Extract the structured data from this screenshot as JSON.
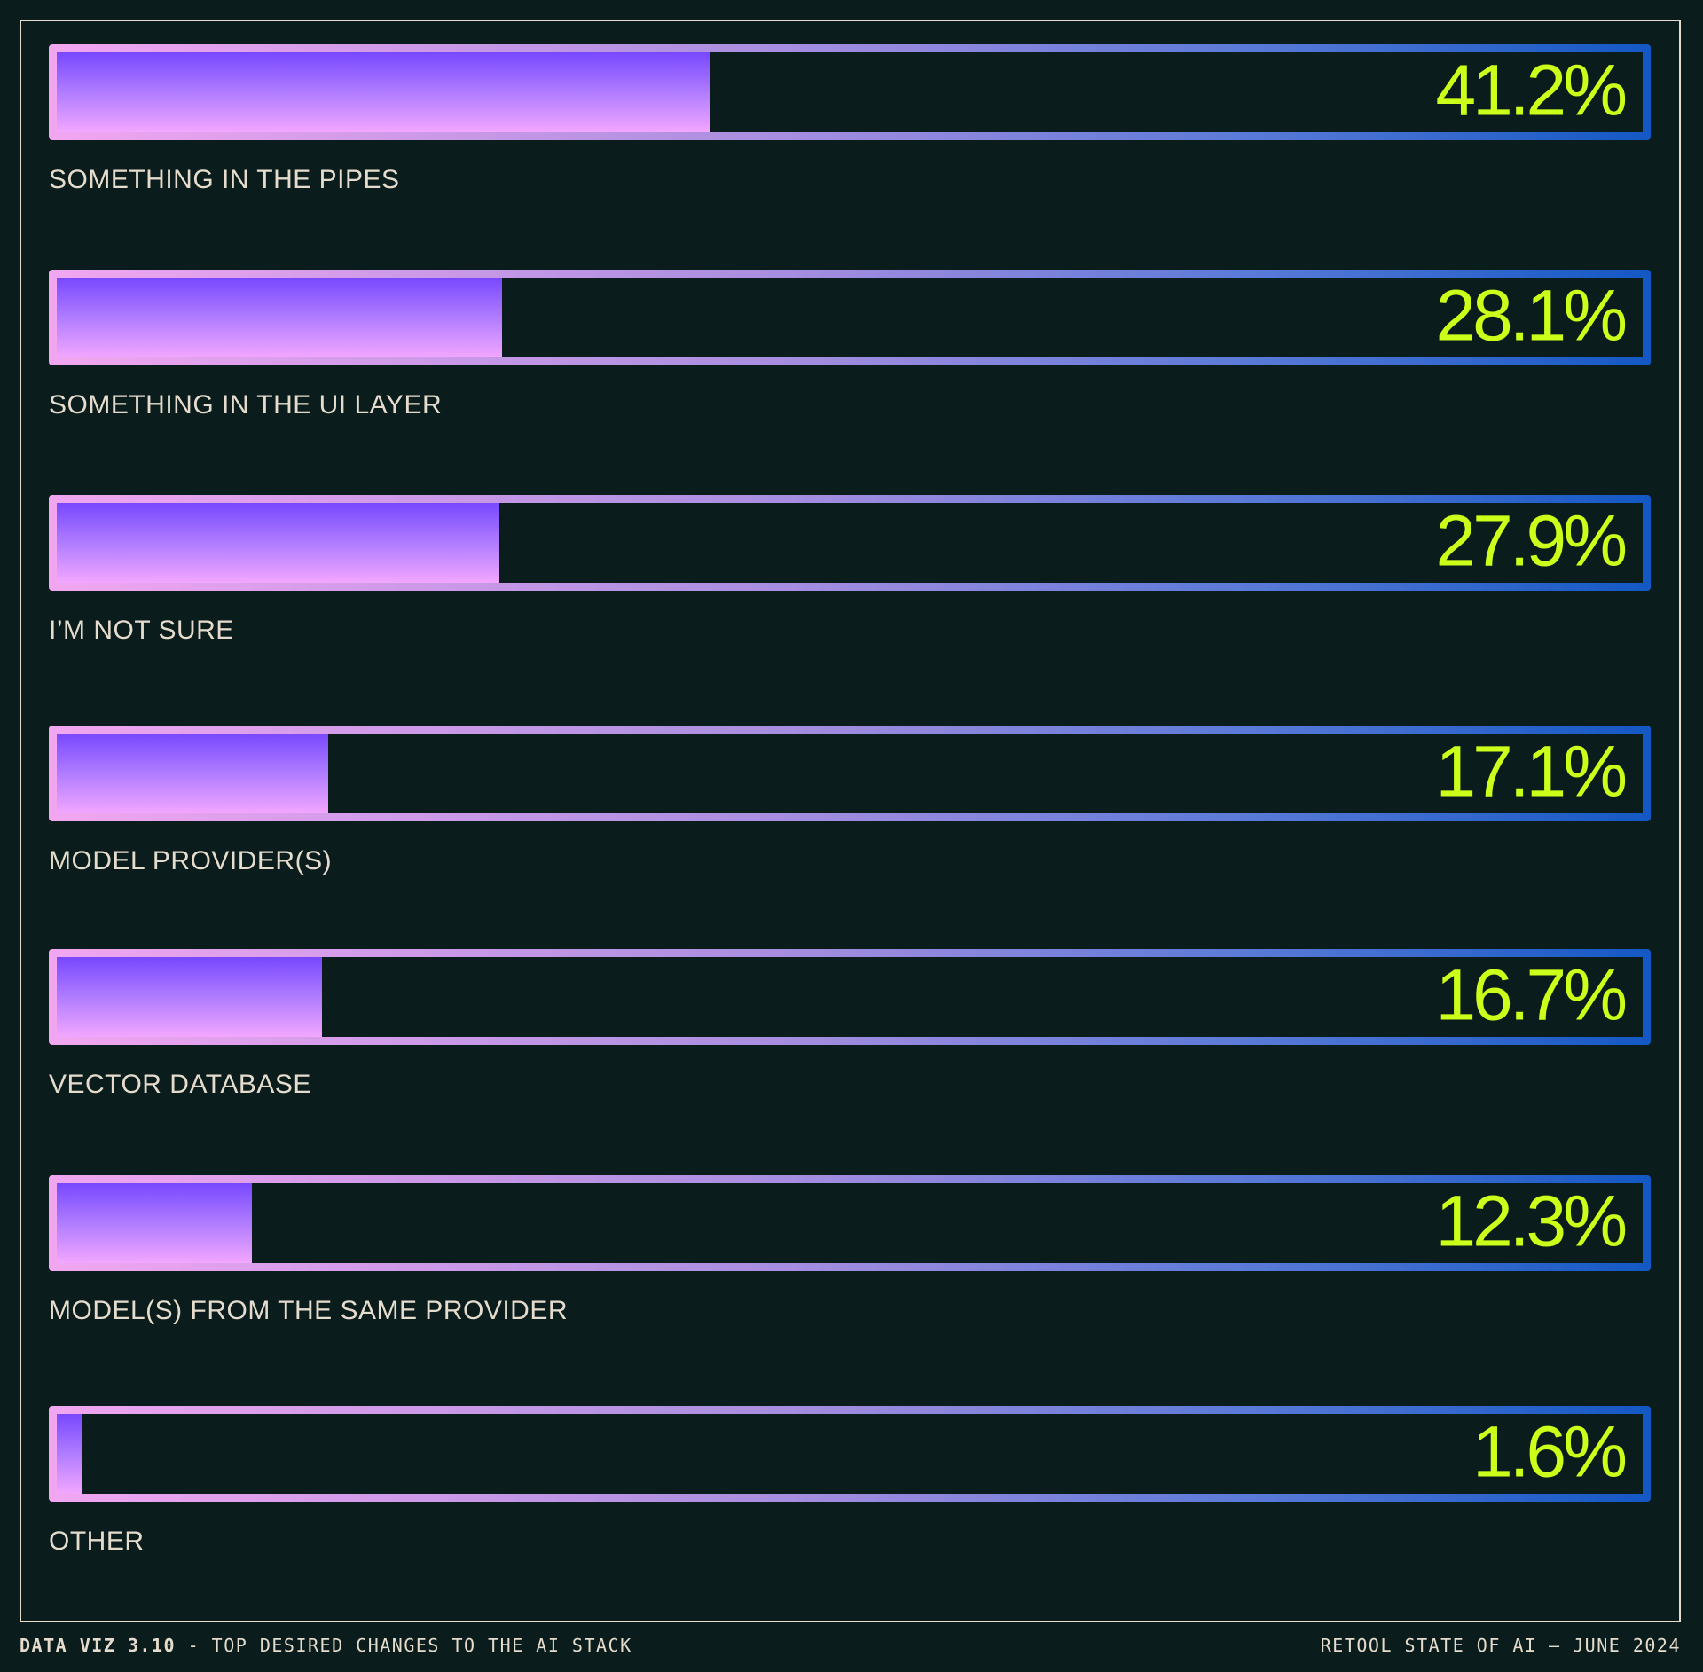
{
  "chart_data": {
    "type": "bar",
    "orientation": "horizontal",
    "categories": [
      "SOMETHING IN THE PIPES",
      "SOMETHING IN THE UI LAYER",
      "I’M NOT SURE",
      "MODEL PROVIDER(S)",
      "VECTOR DATABASE",
      "MODEL(S) FROM THE SAME PROVIDER",
      "OTHER"
    ],
    "values": [
      41.2,
      28.1,
      27.9,
      17.1,
      16.7,
      12.3,
      1.6
    ],
    "value_labels": [
      "41.2%",
      "28.1%",
      "27.9%",
      "17.1%",
      "16.7%",
      "12.3%",
      "1.6%"
    ],
    "xlim": [
      0,
      100
    ],
    "grid": false,
    "colors": {
      "background": "#0a1d1c",
      "value_text": "#ccff1a",
      "label_text": "#e6dccd",
      "fill_top": "#7848ff",
      "fill_bottom": "#f2a6ff",
      "border_left": "#f2a6f0",
      "border_right": "#1358c4"
    }
  },
  "footer": {
    "left_bold": "DATA VIZ 3.10",
    "left_rest": " - TOP DESIRED CHANGES TO THE AI STACK",
    "right": "RETOOL STATE OF AI — JUNE 2024"
  }
}
